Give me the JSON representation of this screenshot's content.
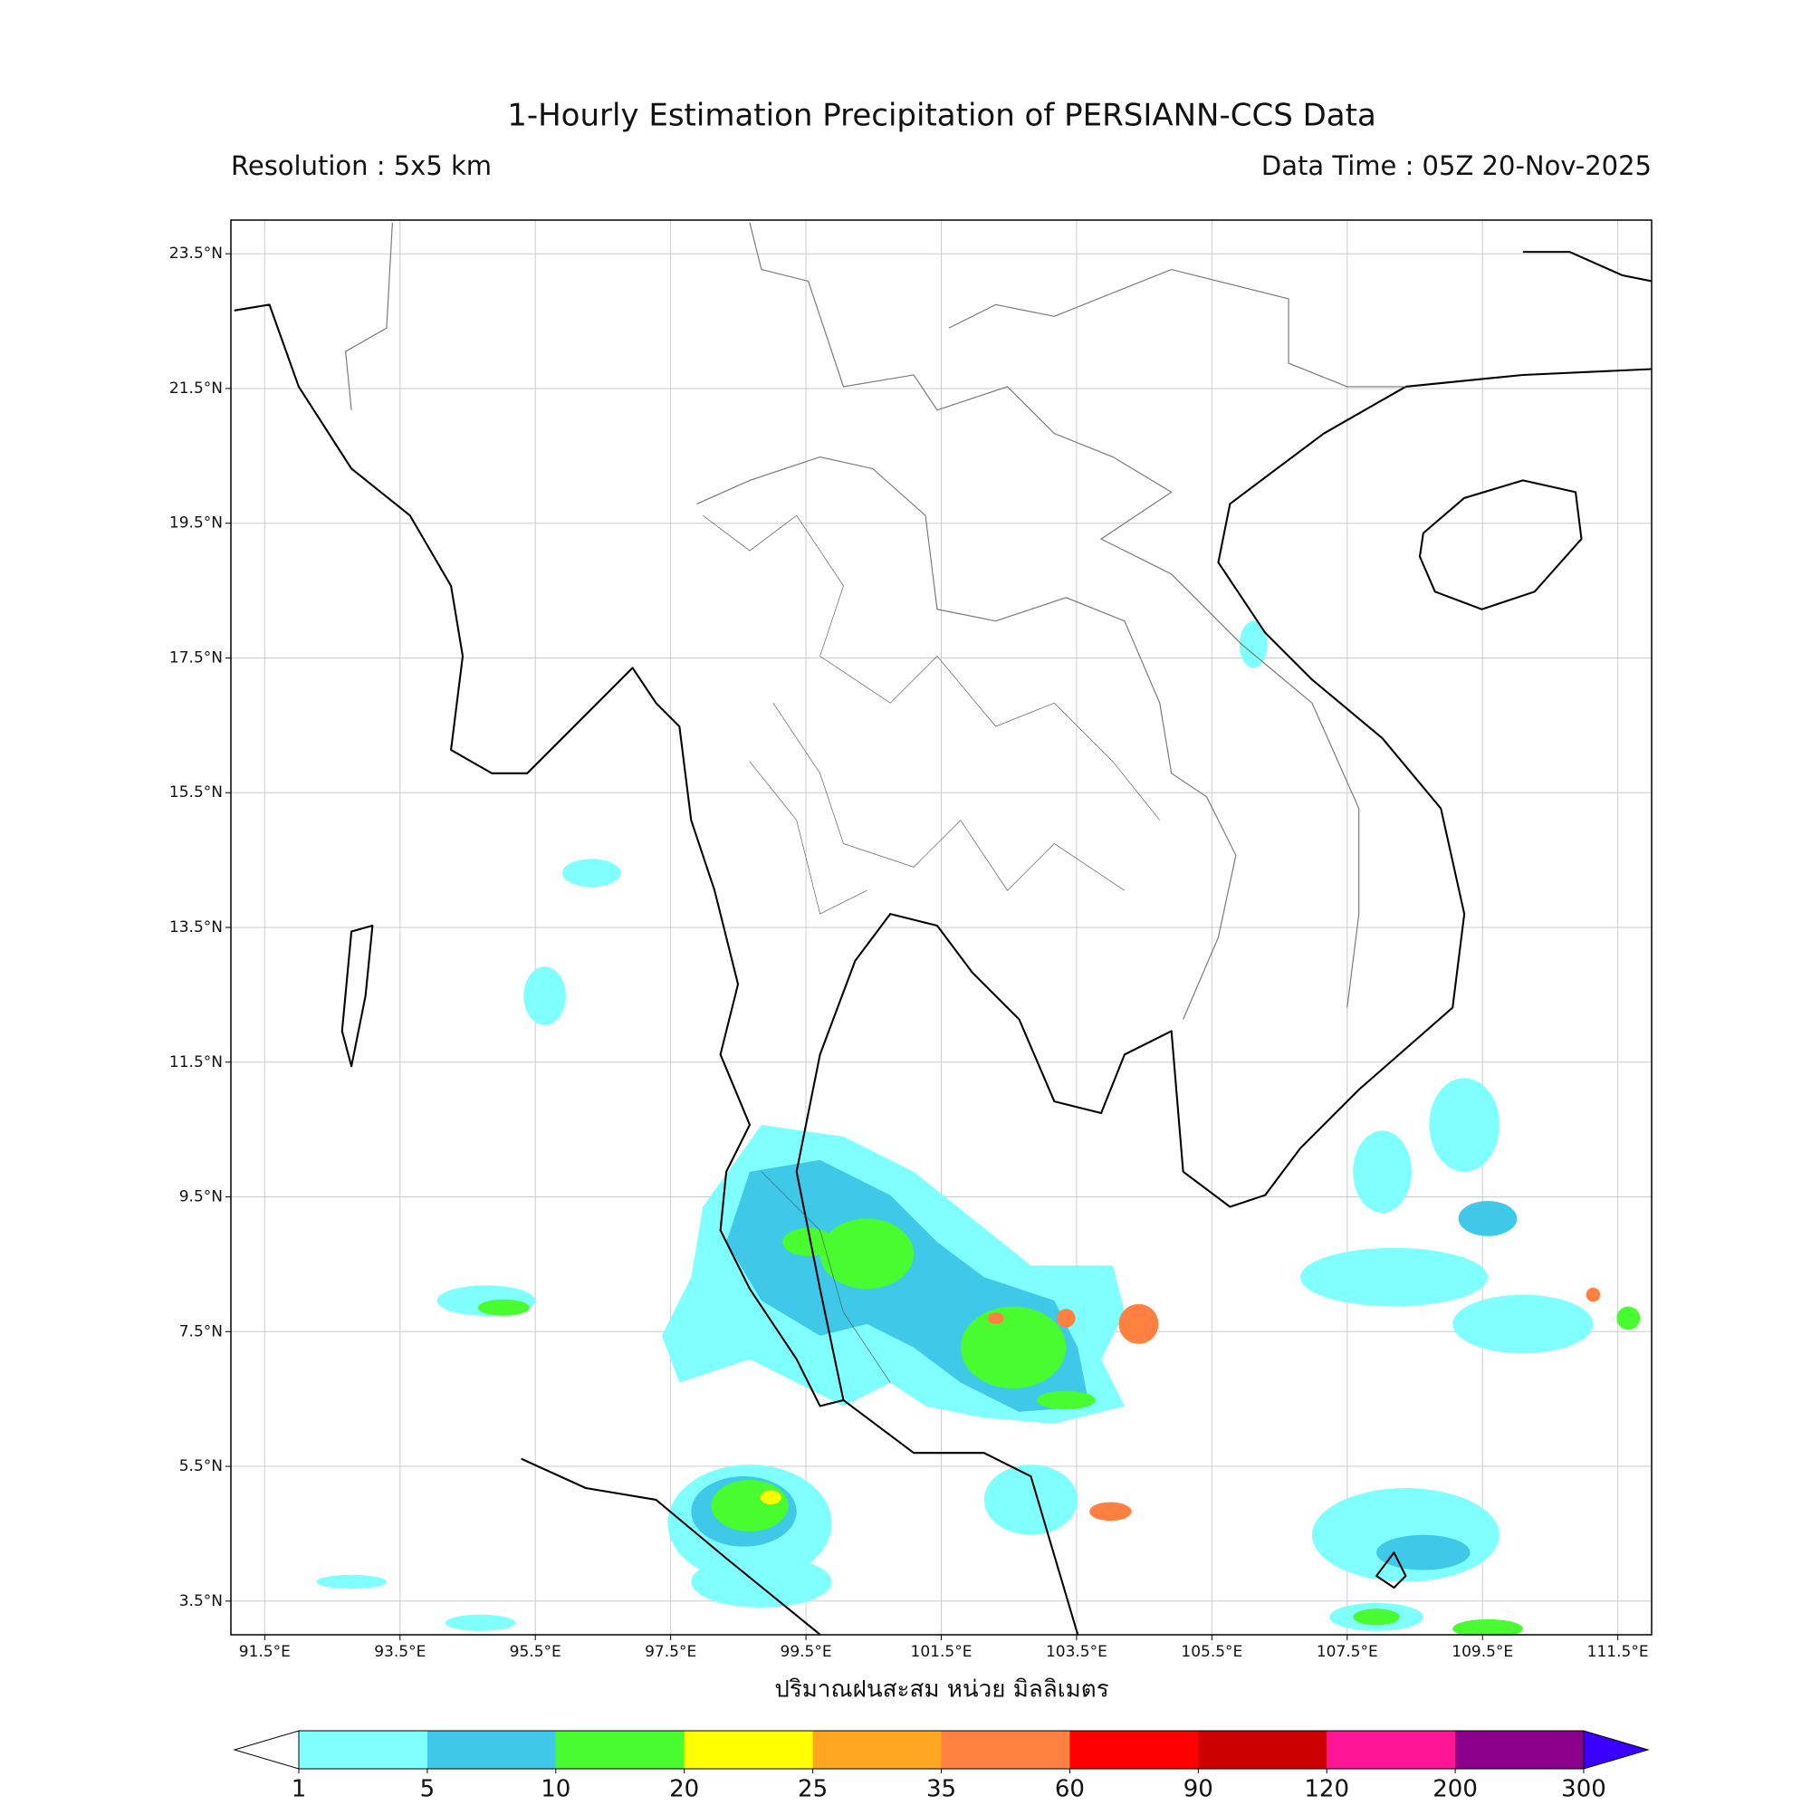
{
  "title": "1-Hourly Estimation Precipitation of PERSIANN-CCS Data",
  "resolution": "Resolution : 5x5 km",
  "data_time": "Data Time : 05Z 20-Nov-2025",
  "map": {
    "xlim": [
      91,
      112
    ],
    "ylim": [
      3,
      24
    ],
    "grid": true,
    "xticks": [
      {
        "value": 91.5,
        "label": "91.5°E"
      },
      {
        "value": 93.5,
        "label": "93.5°E"
      },
      {
        "value": 95.5,
        "label": "95.5°E"
      },
      {
        "value": 97.5,
        "label": "97.5°E"
      },
      {
        "value": 99.5,
        "label": "99.5°E"
      },
      {
        "value": 101.5,
        "label": "101.5°E"
      },
      {
        "value": 103.5,
        "label": "103.5°E"
      },
      {
        "value": 105.5,
        "label": "105.5°E"
      },
      {
        "value": 107.5,
        "label": "107.5°E"
      },
      {
        "value": 109.5,
        "label": "109.5°E"
      },
      {
        "value": 111.5,
        "label": "111.5°E"
      }
    ],
    "yticks": [
      {
        "value": 23.5,
        "label": "23.5°N"
      },
      {
        "value": 21.5,
        "label": "21.5°N"
      },
      {
        "value": 19.5,
        "label": "19.5°N"
      },
      {
        "value": 17.5,
        "label": "17.5°N"
      },
      {
        "value": 15.5,
        "label": "15.5°N"
      },
      {
        "value": 13.5,
        "label": "13.5°N"
      },
      {
        "value": 11.5,
        "label": "11.5°N"
      },
      {
        "value": 9.5,
        "label": "9.5°N"
      },
      {
        "value": 7.5,
        "label": "7.5°N"
      },
      {
        "value": 5.5,
        "label": "5.5°N"
      },
      {
        "value": 3.5,
        "label": "3.5°N"
      }
    ],
    "xlabel": "ปริมาณฝนสะสม หน่วย มิลลิเมตร"
  },
  "colorbar": {
    "levels": [
      1,
      5,
      10,
      20,
      25,
      35,
      60,
      90,
      120,
      200,
      300
    ],
    "colors": [
      "#80ffff",
      "#40c8e8",
      "#48fc30",
      "#ffff00",
      "#ffa520",
      "#ff8040",
      "#ff0000",
      "#cc0000",
      "#ff1493",
      "#8b008b"
    ],
    "under_color": "#ffffff",
    "over_color": "#3a00ff"
  }
}
